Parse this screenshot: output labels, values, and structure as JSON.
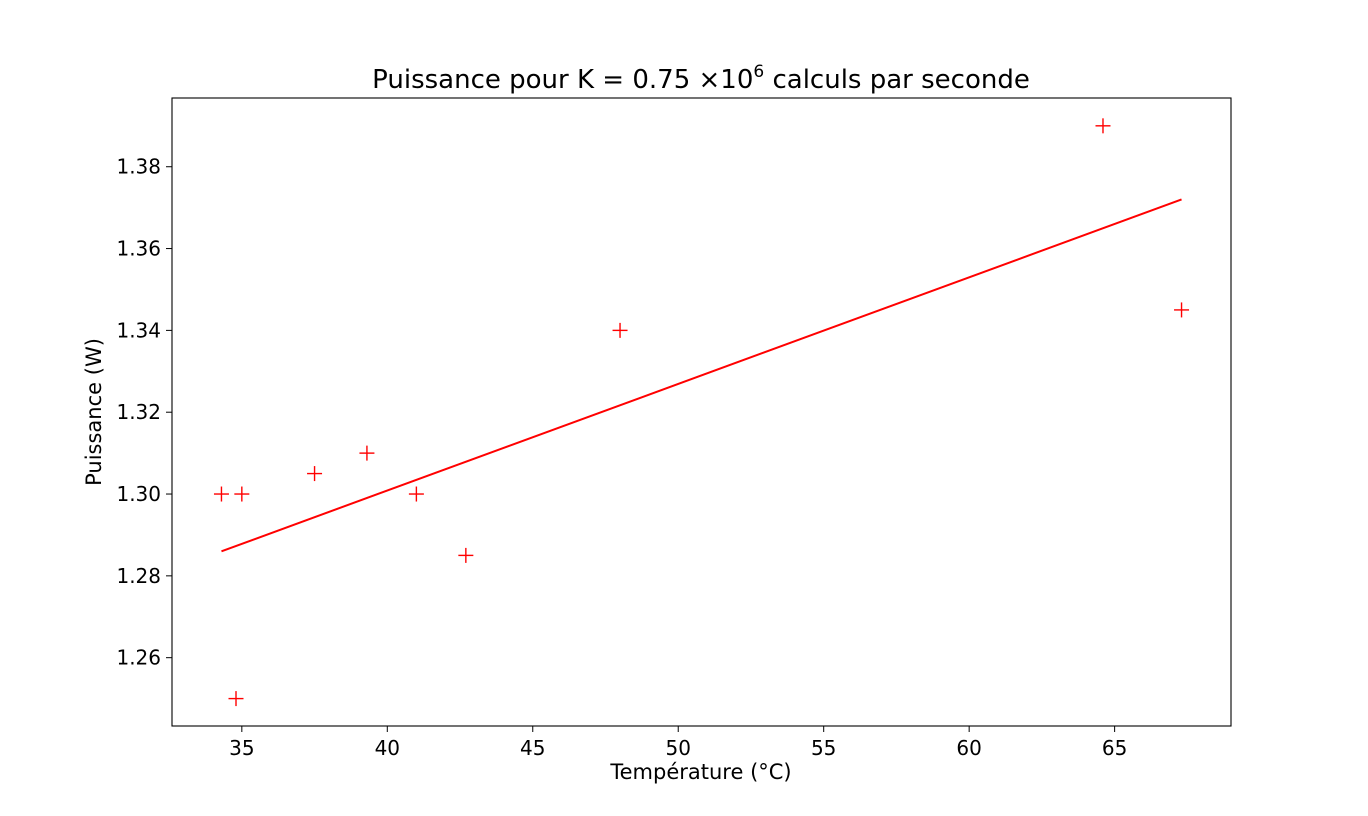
{
  "chart_data": {
    "type": "scatter",
    "title": "Puissance pour K = 0.75 ×10",
    "title_superscript": "6",
    "title_suffix": " calculs par seconde",
    "xlabel": "Température (°C)",
    "ylabel": "Puissance (W)",
    "xlim": [
      32.6,
      69.0
    ],
    "ylim": [
      1.2433,
      1.3968
    ],
    "xticks": [
      35,
      40,
      45,
      50,
      55,
      60,
      65
    ],
    "xtick_labels": [
      "35",
      "40",
      "45",
      "50",
      "55",
      "60",
      "65"
    ],
    "yticks": [
      1.26,
      1.28,
      1.3,
      1.32,
      1.34,
      1.36,
      1.38
    ],
    "ytick_labels": [
      "1.26",
      "1.28",
      "1.30",
      "1.32",
      "1.34",
      "1.36",
      "1.38"
    ],
    "grid": false,
    "marker": "+",
    "color": "#ff0000",
    "series": [
      {
        "kind": "points",
        "x": [
          34.3,
          35.0,
          34.8,
          37.5,
          39.3,
          41.0,
          42.7,
          48.0,
          64.6,
          67.3
        ],
        "y": [
          1.3,
          1.3,
          1.25,
          1.305,
          1.31,
          1.3,
          1.285,
          1.34,
          1.39,
          1.345
        ]
      },
      {
        "kind": "fit_line",
        "x": [
          34.3,
          67.3
        ],
        "y": [
          1.286,
          1.372
        ]
      }
    ]
  }
}
